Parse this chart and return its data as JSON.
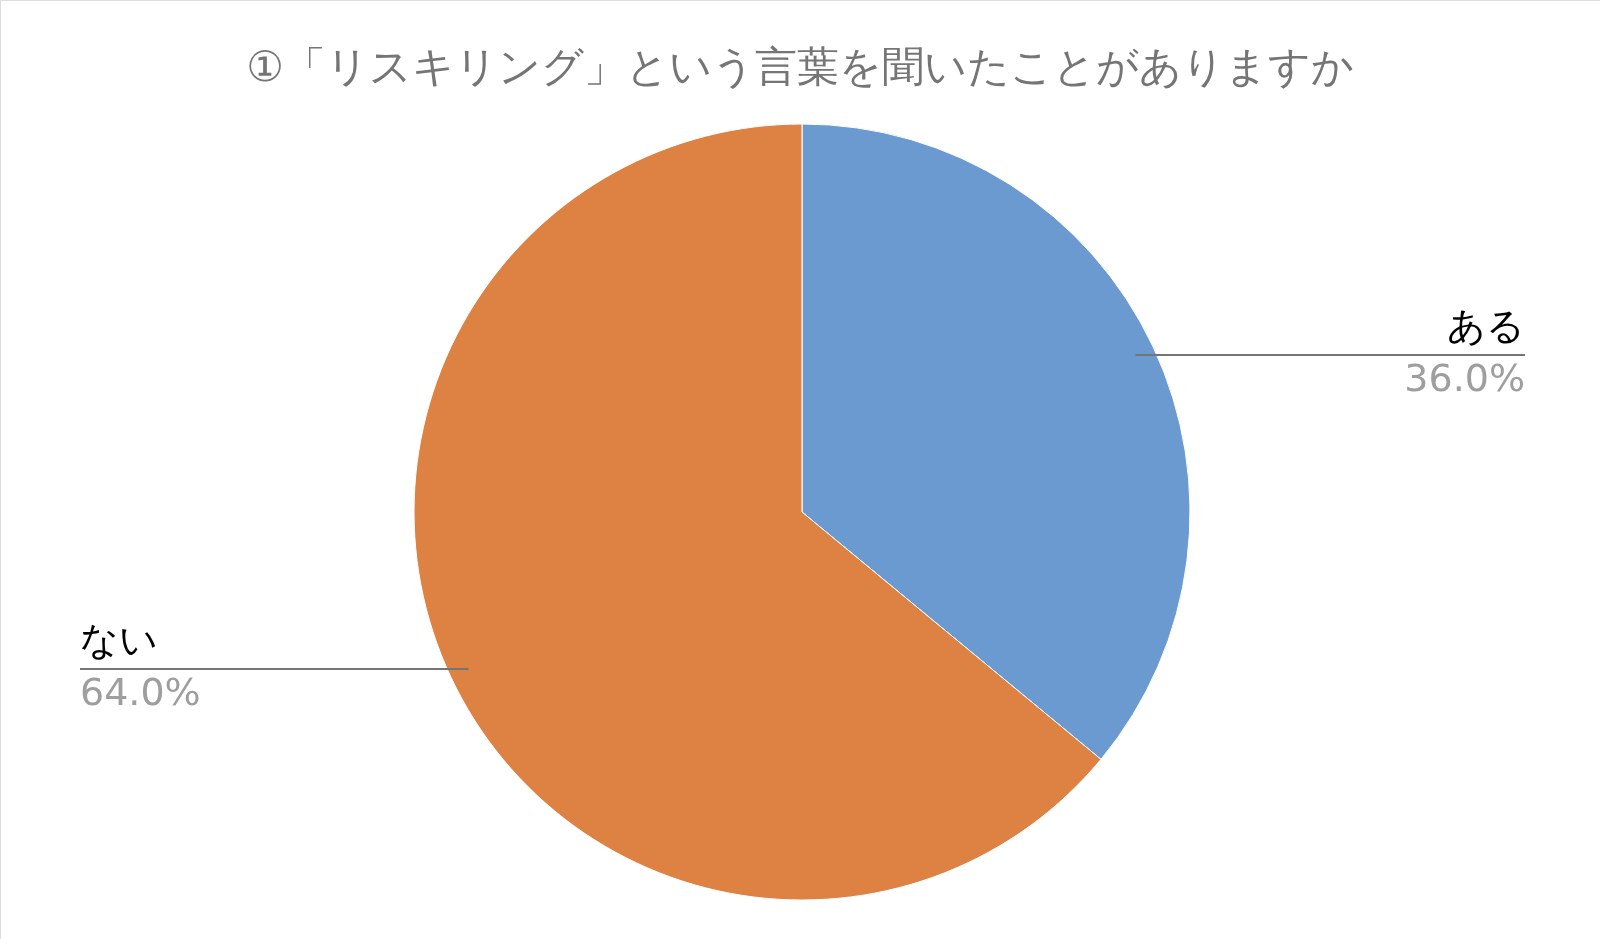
{
  "chart_data": {
    "type": "pie",
    "title": "①「リスキリング」という言葉を聞いたことがありますか",
    "categories": [
      "ある",
      "ない"
    ],
    "values": [
      36.0,
      64.0
    ],
    "value_labels": [
      "36.0%",
      "64.0%"
    ],
    "colors": [
      "#6a9ad0",
      "#de8244"
    ]
  }
}
